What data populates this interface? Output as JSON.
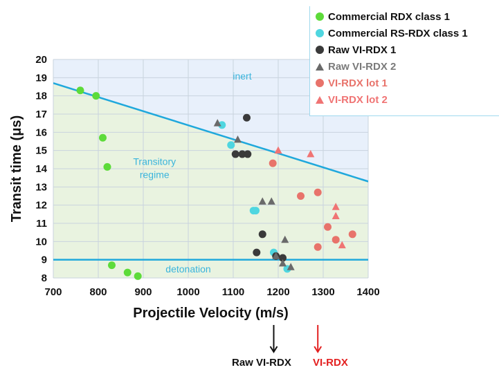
{
  "chart_data": {
    "type": "scatter",
    "title": "",
    "xlabel": "Projectile Velocity (m/s)",
    "ylabel": "Transit time (μs)",
    "xlim": [
      700,
      1400
    ],
    "ylim": [
      8,
      20
    ],
    "x_ticks": [
      700,
      800,
      900,
      1000,
      1100,
      1200,
      1300,
      1400
    ],
    "y_ticks": [
      8,
      9,
      10,
      11,
      12,
      13,
      14,
      15,
      16,
      17,
      18,
      19,
      20
    ],
    "grid": true,
    "legend_position": "top-right",
    "regions": [
      {
        "label": "inert"
      },
      {
        "label": "Transitory regime"
      },
      {
        "label": "detonation"
      }
    ],
    "boundary_lines": [
      {
        "name": "inert-boundary",
        "x": [
          700,
          1400
        ],
        "y": [
          18.7,
          13.3
        ]
      },
      {
        "name": "detonation-boundary",
        "x": [
          700,
          1400
        ],
        "y": [
          9.0,
          9.0
        ]
      }
    ],
    "series": [
      {
        "name": "Commercial RDX class 1",
        "marker": "circle",
        "color": "#5ddb3a",
        "points": [
          [
            760,
            18.3
          ],
          [
            795,
            18.0
          ],
          [
            810,
            15.7
          ],
          [
            820,
            14.1
          ],
          [
            830,
            8.7
          ],
          [
            865,
            8.3
          ],
          [
            888,
            8.1
          ]
        ]
      },
      {
        "name": "Commercial RS-RDX class 1",
        "marker": "circle",
        "color": "#4fd6e0",
        "points": [
          [
            1075,
            16.4
          ],
          [
            1095,
            15.3
          ],
          [
            1145,
            11.7
          ],
          [
            1150,
            11.7
          ],
          [
            1190,
            9.4
          ],
          [
            1220,
            8.5
          ]
        ]
      },
      {
        "name": "Raw VI-RDX 1",
        "marker": "circle",
        "color": "#3a3a3a",
        "points": [
          [
            1130,
            16.8
          ],
          [
            1105,
            14.8
          ],
          [
            1120,
            14.8
          ],
          [
            1132,
            14.8
          ],
          [
            1165,
            10.4
          ],
          [
            1152,
            9.4
          ],
          [
            1195,
            9.2
          ],
          [
            1210,
            9.1
          ]
        ]
      },
      {
        "name": "Raw VI-RDX 2",
        "marker": "triangle",
        "color": "#6a6a6a",
        "points": [
          [
            1065,
            16.5
          ],
          [
            1110,
            15.6
          ],
          [
            1165,
            12.2
          ],
          [
            1185,
            12.2
          ],
          [
            1215,
            10.1
          ],
          [
            1195,
            9.2
          ],
          [
            1210,
            8.8
          ],
          [
            1228,
            8.6
          ]
        ]
      },
      {
        "name": "VI-RDX lot 1",
        "marker": "circle",
        "color": "#e8736b",
        "points": [
          [
            1188,
            14.3
          ],
          [
            1250,
            12.5
          ],
          [
            1288,
            12.7
          ],
          [
            1310,
            10.8
          ],
          [
            1288,
            9.7
          ],
          [
            1328,
            10.1
          ],
          [
            1365,
            10.4
          ]
        ]
      },
      {
        "name": "VI-RDX lot 2",
        "marker": "triangle",
        "color": "#f07474",
        "points": [
          [
            1200,
            15.0
          ],
          [
            1272,
            14.8
          ],
          [
            1328,
            11.9
          ],
          [
            1328,
            11.4
          ],
          [
            1342,
            9.8
          ]
        ]
      }
    ],
    "legend": [
      {
        "label": "Commercial RDX class 1"
      },
      {
        "label": "Commercial RS-RDX class 1"
      },
      {
        "label": "Raw VI-RDX 1"
      },
      {
        "label": "Raw VI-RDX 2"
      },
      {
        "label": "VI-RDX lot 1"
      },
      {
        "label": "VI-RDX lot 2"
      }
    ],
    "arrows": [
      {
        "label": "Raw VI-RDX",
        "color": "#111111"
      },
      {
        "label": "VI-RDX",
        "color": "#e32020"
      }
    ]
  },
  "colors": {
    "inert_region": "#e8f0fb",
    "transitory_region": "#e9f3e0",
    "boundary_line": "#1fa8dc",
    "region_text": "#39b4dc",
    "grid": "#c9d3de"
  }
}
